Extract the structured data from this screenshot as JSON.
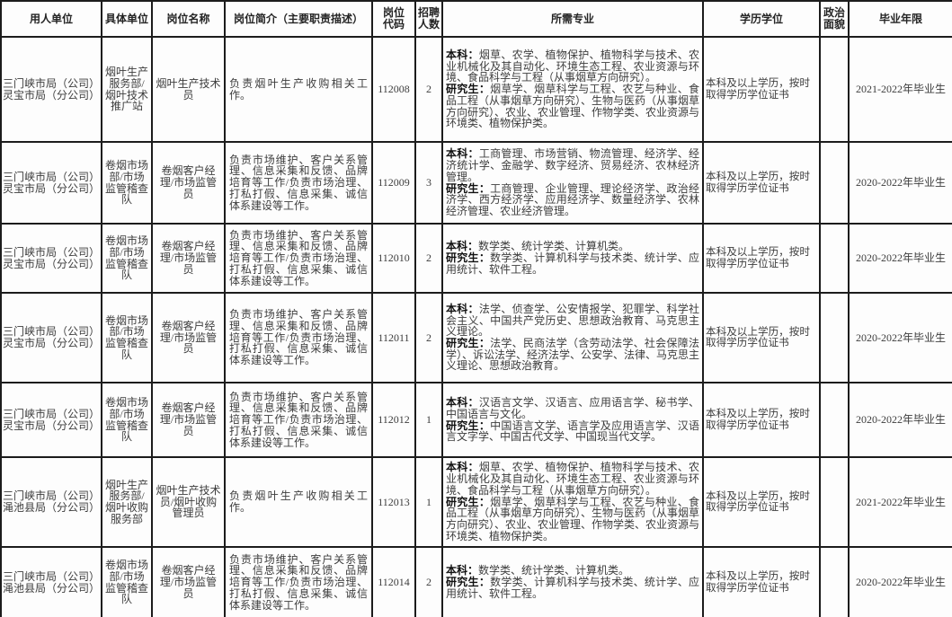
{
  "table": {
    "columns": [
      {
        "label": "用人单位"
      },
      {
        "label": "具体单位"
      },
      {
        "label": "岗位名称"
      },
      {
        "label": "岗位简介（主要职责描述）"
      },
      {
        "label": "岗位\n代码"
      },
      {
        "label": "招聘\n人数"
      },
      {
        "label": "所需专业"
      },
      {
        "label": "学历学位"
      },
      {
        "label": "政治\n面貌"
      },
      {
        "label": "毕业年限"
      }
    ],
    "majors_labels": {
      "bachelor": "本科：",
      "graduate": "研究生："
    },
    "rows": [
      {
        "employer": "三门峡市局（公司）灵宝市局（分公司）",
        "unit": "烟叶生产服务部/烟叶技术推广站",
        "position": "烟叶生产技术员",
        "duties": "负责烟叶生产收购相关工作。",
        "code": "112008",
        "count": "2",
        "majors_bachelor": "烟草、农学、植物保护、植物科学与技术、农业机械化及其自动化、环境生态工程、农业资源与环境、食品科学与工程（从事烟草方向研究）。",
        "majors_graduate": "烟草学、烟草科学与工程、农艺与种业、食品工程（从事烟草方向研究）、生物与医药（从事烟草方向研究）、农业、农业管理、作物学类、农业资源与环境类、植物保护类。",
        "degree": "本科及以上学历，按时取得学历学位证书",
        "political": "",
        "grad_year": "2021-2022年毕业生"
      },
      {
        "employer": "三门峡市局（公司）灵宝市局（分公司）",
        "unit": "卷烟市场部/市场监管稽查队",
        "position": "卷烟客户经理/市场监管员",
        "duties": "负责市场维护、客户关系管理、信息采集和反馈、品牌培育等工作/负责市场治理、打私打假、信息采集、诚信体系建设等工作。",
        "code": "112009",
        "count": "3",
        "majors_bachelor": "工商管理、市场营销、物流管理、经济学、经济统计学、金融学、数字经济、贸易经济、农林经济管理。",
        "majors_graduate": "工商管理、企业管理、理论经济学、政治经济学、西方经济学、应用经济学、数量经济学、农林经济管理、农业经济管理。",
        "degree": "本科及以上学历，按时取得学历学位证书",
        "political": "",
        "grad_year": "2020-2022年毕业生"
      },
      {
        "employer": "三门峡市局（公司）灵宝市局（分公司）",
        "unit": "卷烟市场部/市场监管稽查队",
        "position": "卷烟客户经理/市场监管员",
        "duties": "负责市场维护、客户关系管理、信息采集和反馈、品牌培育等工作/负责市场治理、打私打假、信息采集、诚信体系建设等工作。",
        "code": "112010",
        "count": "2",
        "majors_bachelor": "数学类、统计学类、计算机类。",
        "majors_graduate": "数学类、计算机科学与技术类、统计学、应用统计、软件工程。",
        "degree": "本科及以上学历，按时取得学历学位证书",
        "political": "",
        "grad_year": "2020-2022年毕业生"
      },
      {
        "employer": "三门峡市局（公司）灵宝市局（分公司）",
        "unit": "卷烟市场部/市场监管稽查队",
        "position": "卷烟客户经理/市场监管员",
        "duties": "负责市场维护、客户关系管理、信息采集和反馈、品牌培育等工作/负责市场治理、打私打假、信息采集、诚信体系建设等工作。",
        "code": "112011",
        "count": "2",
        "majors_bachelor": "法学、侦查学、公安情报学、犯罪学、科学社会主义、中国共产党历史、思想政治教育、马克思主义理论。",
        "majors_graduate": "法学、民商法学（含劳动法学、社会保障法学）、诉讼法学、经济法学、公安学、法律、马克思主义理论、思想政治教育。",
        "degree": "本科及以上学历，按时取得学历学位证书",
        "political": "",
        "grad_year": "2020-2022年毕业生"
      },
      {
        "employer": "三门峡市局（公司）灵宝市局（分公司）",
        "unit": "卷烟市场部/市场监管稽查队",
        "position": "卷烟客户经理/市场监管员",
        "duties": "负责市场维护、客户关系管理、信息采集和反馈、品牌培育等工作/负责市场治理、打私打假、信息采集、诚信体系建设等工作。",
        "code": "112012",
        "count": "1",
        "majors_bachelor": "汉语言文学、汉语言、应用语言学、秘书学、中国语言与文化。",
        "majors_graduate": "中国语言文学、语言学及应用语言学、汉语言文字学、中国古代文学、中国现当代文学。",
        "degree": "本科及以上学历，按时取得学历学位证书",
        "political": "",
        "grad_year": "2020-2022年毕业生"
      },
      {
        "employer": "三门峡市局（公司）渑池县局（分公司）",
        "unit": "烟叶生产服务部/烟叶收购服务部",
        "position": "烟叶生产技术员/烟叶收购管理员",
        "duties": "负责烟叶生产收购相关工作。",
        "code": "112013",
        "count": "1",
        "majors_bachelor": "烟草、农学、植物保护、植物科学与技术、农业机械化及其自动化、环境生态工程、农业资源与环境、食品科学与工程（从事烟草方向研究）。",
        "majors_graduate": "烟草学、烟草科学与工程、农艺与种业、食品工程（从事烟草方向研究）、生物与医药（从事烟草方向研究）、农业、农业管理、作物学类、农业资源与环境类、植物保护类。",
        "degree": "本科及以上学历，按时取得学历学位证书",
        "political": "",
        "grad_year": "2021-2022年毕业生"
      },
      {
        "employer": "三门峡市局（公司）渑池县局（分公司）",
        "unit": "卷烟市场部/市场监管稽查队",
        "position": "卷烟客户经理/市场监管员",
        "duties": "负责市场维护、客户关系管理、信息采集和反馈、品牌培育等工作/负责市场治理、打私打假、信息采集、诚信体系建设等工作。",
        "code": "112014",
        "count": "2",
        "majors_bachelor": "数学类、统计学类、计算机类。",
        "majors_graduate": "数学类、计算机科学与技术类、统计学、应用统计、软件工程。",
        "degree": "本科及以上学历，按时取得学历学位证书",
        "political": "",
        "grad_year": "2020-2022年毕业生"
      }
    ]
  }
}
